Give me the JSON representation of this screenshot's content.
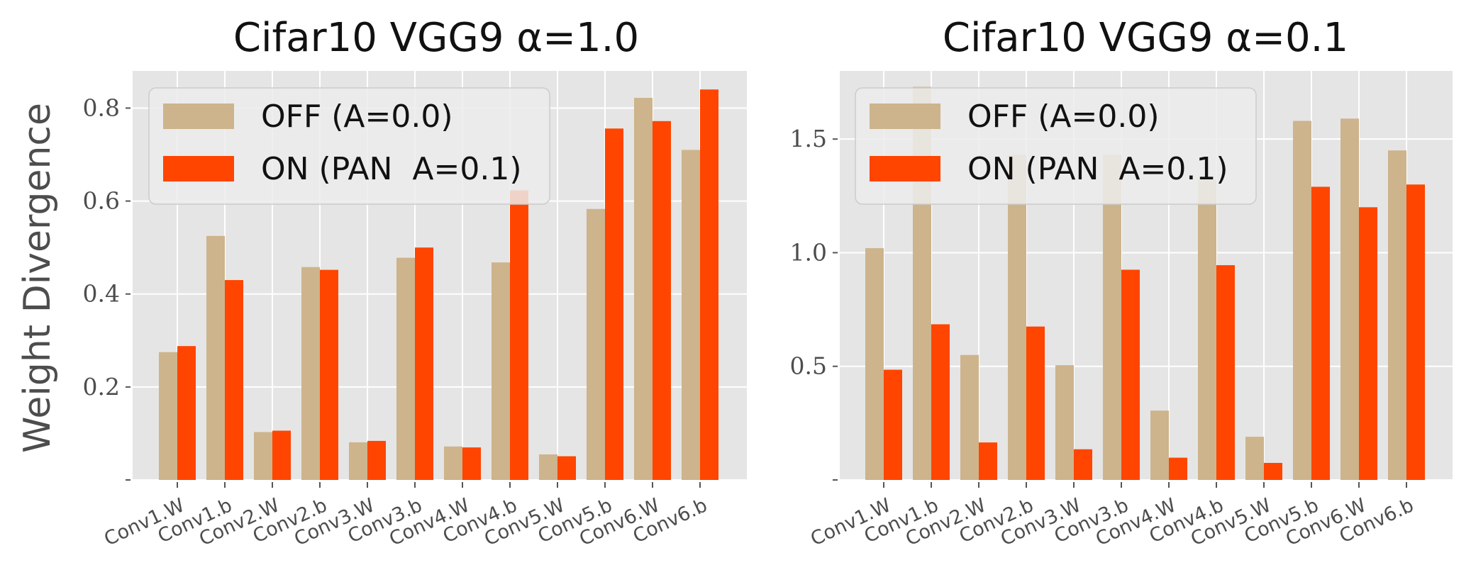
{
  "figure": {
    "ylabel": "Weight Divergence"
  },
  "chart_data": [
    {
      "type": "bar",
      "title": "Cifar10 VGG9 α=1.0",
      "xlabel": "",
      "ylabel": "Weight Divergence",
      "ylim": [
        0,
        0.88
      ],
      "yticks": [
        0.0,
        0.2,
        0.4,
        0.6,
        0.8
      ],
      "ytick_labels": [
        "",
        "0.2",
        "0.4",
        "0.6",
        "0.8"
      ],
      "grid": true,
      "legend_position": "top-left",
      "categories": [
        "Conv1.W",
        "Conv1.b",
        "Conv2.W",
        "Conv2.b",
        "Conv3.W",
        "Conv3.b",
        "Conv4.W",
        "Conv4.b",
        "Conv5.W",
        "Conv5.b",
        "Conv6.W",
        "Conv6.b"
      ],
      "series": [
        {
          "name": "OFF (A=0.0)",
          "color": "#cdb48c",
          "values": [
            0.275,
            0.525,
            0.103,
            0.458,
            0.081,
            0.478,
            0.072,
            0.468,
            0.055,
            0.583,
            0.822,
            0.71
          ]
        },
        {
          "name": "ON (PAN  A=0.1)",
          "color": "#ff4500",
          "values": [
            0.288,
            0.43,
            0.106,
            0.452,
            0.084,
            0.5,
            0.07,
            0.623,
            0.051,
            0.756,
            0.772,
            0.84
          ]
        }
      ]
    },
    {
      "type": "bar",
      "title": "Cifar10 VGG9 α=0.1",
      "xlabel": "",
      "ylabel": "",
      "ylim": [
        0,
        1.8
      ],
      "yticks": [
        0.0,
        0.5,
        1.0,
        1.5
      ],
      "ytick_labels": [
        "",
        "0.5",
        "1.0",
        "1.5"
      ],
      "grid": true,
      "legend_position": "top-left",
      "categories": [
        "Conv1.W",
        "Conv1.b",
        "Conv2.W",
        "Conv2.b",
        "Conv3.W",
        "Conv3.b",
        "Conv4.W",
        "Conv4.b",
        "Conv5.W",
        "Conv5.b",
        "Conv6.W",
        "Conv6.b"
      ],
      "series": [
        {
          "name": "OFF (A=0.0)",
          "color": "#cdb48c",
          "values": [
            1.02,
            1.73,
            0.55,
            1.43,
            0.505,
            1.43,
            0.305,
            1.32,
            0.19,
            1.58,
            1.59,
            1.45
          ]
        },
        {
          "name": "ON (PAN  A=0.1)",
          "color": "#ff4500",
          "values": [
            0.485,
            0.685,
            0.165,
            0.675,
            0.135,
            0.925,
            0.098,
            0.945,
            0.075,
            1.29,
            1.2,
            1.3
          ]
        }
      ]
    }
  ]
}
